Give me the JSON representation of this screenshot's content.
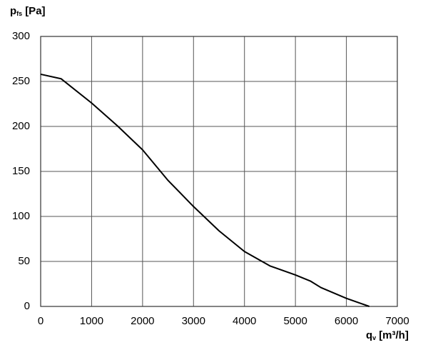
{
  "chart_data": {
    "type": "line",
    "ylabel": {
      "symbol": "p",
      "subscript": "fs",
      "unit": "[Pa]"
    },
    "xlabel": {
      "symbol": "q",
      "subscript": "v",
      "unit": "[m³/h]"
    },
    "x": [
      0,
      400,
      1000,
      1500,
      2000,
      2500,
      3000,
      3500,
      4000,
      4500,
      5000,
      5300,
      5500,
      6000,
      6450
    ],
    "values": [
      258,
      253,
      226,
      201,
      174,
      140,
      111,
      84,
      61,
      45,
      35,
      28,
      21,
      9,
      0
    ],
    "color": "#000000",
    "xlim": [
      0,
      7000
    ],
    "xticks": [
      0,
      1000,
      2000,
      3000,
      4000,
      5000,
      6000,
      7000
    ],
    "ylim": [
      0,
      300
    ],
    "yticks": [
      0,
      50,
      100,
      150,
      200,
      250,
      300
    ],
    "grid": true
  }
}
